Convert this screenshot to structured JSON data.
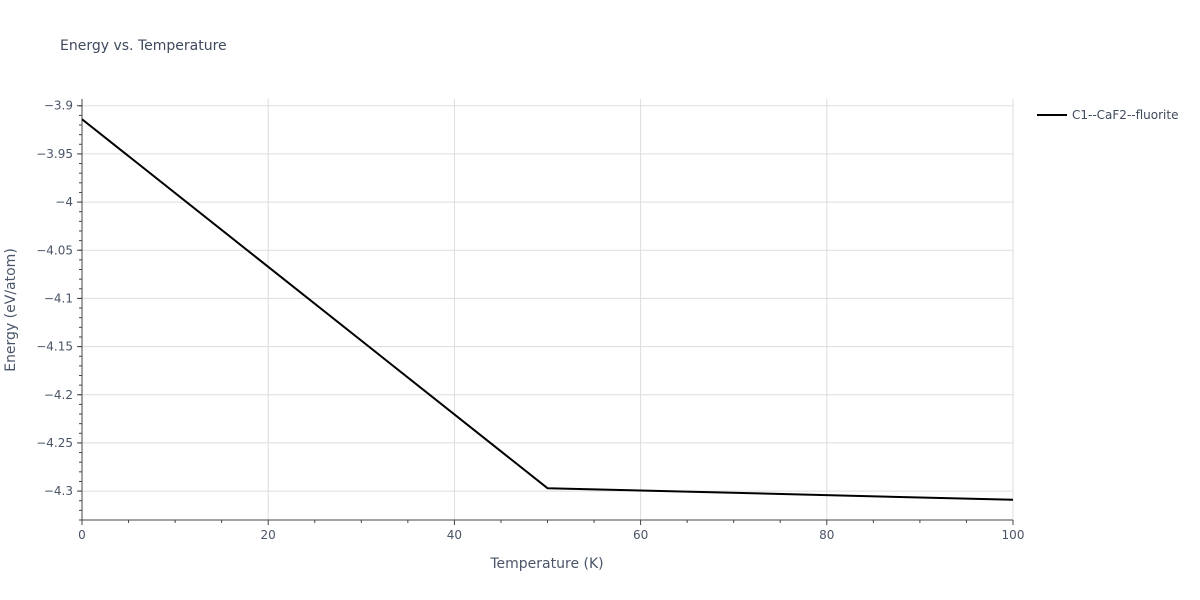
{
  "chart_data": {
    "type": "line",
    "title": "Energy vs. Temperature",
    "xlabel": "Temperature (K)",
    "ylabel": "Energy (eV/atom)",
    "xlim": [
      0,
      100
    ],
    "ylim": [
      -4.33,
      -3.893
    ],
    "xticks": [
      0,
      20,
      40,
      60,
      80,
      100
    ],
    "xtick_labels": [
      "0",
      "20",
      "40",
      "60",
      "80",
      "100"
    ],
    "yticks": [
      -3.9,
      -3.95,
      -4.0,
      -4.05,
      -4.1,
      -4.15,
      -4.2,
      -4.25,
      -4.3
    ],
    "ytick_labels": [
      "−3.9",
      "−3.95",
      "−4",
      "−4.05",
      "−4.1",
      "−4.15",
      "−4.2",
      "−4.25",
      "−4.3"
    ],
    "grid": true,
    "legend_position": "top-right",
    "series": [
      {
        "name": "C1--CaF2--fluorite",
        "color": "#000000",
        "x": [
          0,
          50,
          100
        ],
        "y": [
          -3.914,
          -4.297,
          -4.309
        ]
      }
    ]
  }
}
